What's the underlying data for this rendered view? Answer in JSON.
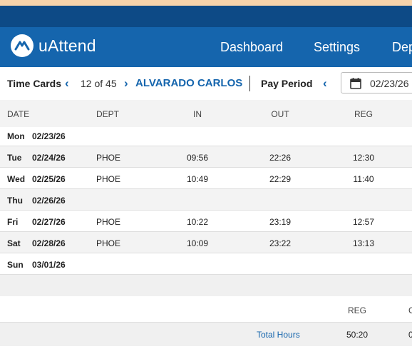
{
  "brand": {
    "name": "uAttend"
  },
  "nav": {
    "dashboard": "Dashboard",
    "settings": "Settings",
    "dept": "Dep"
  },
  "toolbar": {
    "time_cards": "Time Cards",
    "counter": "12 of 45",
    "employee": "ALVARADO CARLOS",
    "pay_period": "Pay Period",
    "date": "02/23/26"
  },
  "colors": {
    "nav": "#1565ad",
    "dark_band": "#0d4a86",
    "accent": "#1565ad",
    "top_strip": "#f6d3ab"
  },
  "table": {
    "headers": {
      "date": "DATE",
      "dept": "DEPT",
      "in": "IN",
      "out": "OUT",
      "reg": "REG"
    },
    "rows": [
      {
        "day": "Mon",
        "date": "02/23/26",
        "dept": "",
        "in": "",
        "out": "",
        "reg": ""
      },
      {
        "day": "Tue",
        "date": "02/24/26",
        "dept": "PHOE",
        "in": "09:56",
        "out": "22:26",
        "reg": "12:30"
      },
      {
        "day": "Wed",
        "date": "02/25/26",
        "dept": "PHOE",
        "in": "10:49",
        "out": "22:29",
        "reg": "11:40"
      },
      {
        "day": "Thu",
        "date": "02/26/26",
        "dept": "",
        "in": "",
        "out": "",
        "reg": ""
      },
      {
        "day": "Fri",
        "date": "02/27/26",
        "dept": "PHOE",
        "in": "10:22",
        "out": "23:19",
        "reg": "12:57"
      },
      {
        "day": "Sat",
        "date": "02/28/26",
        "dept": "PHOE",
        "in": "10:09",
        "out": "23:22",
        "reg": "13:13"
      },
      {
        "day": "Sun",
        "date": "03/01/26",
        "dept": "",
        "in": "",
        "out": "",
        "reg": ""
      }
    ]
  },
  "summary": {
    "reg_header": "REG",
    "next_header_partial": "C",
    "total_label": "Total Hours",
    "total_reg": "50:20",
    "total_next_partial": "0"
  }
}
